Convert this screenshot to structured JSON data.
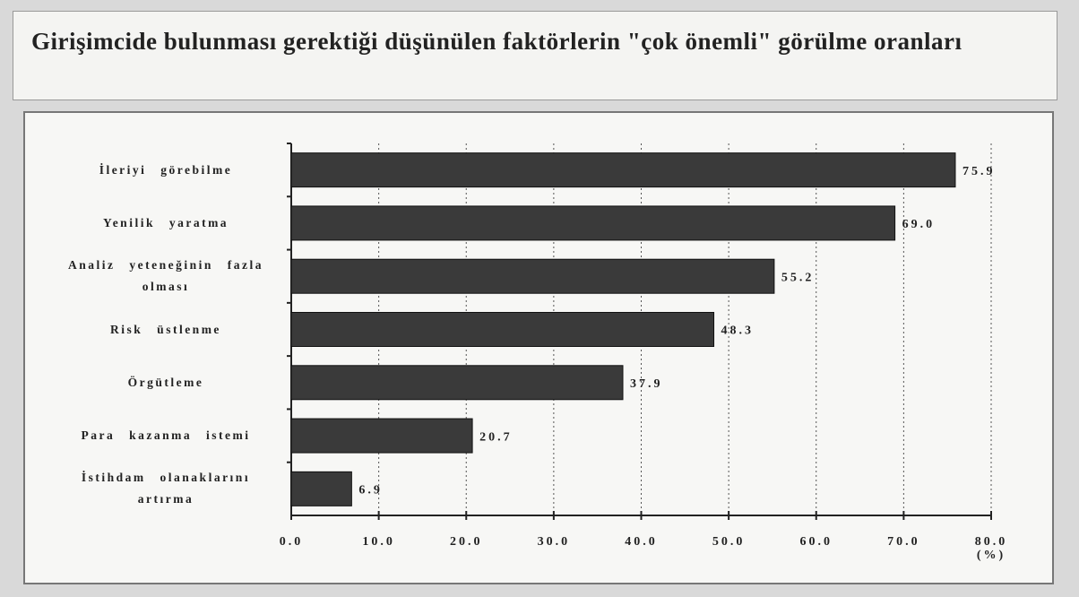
{
  "chart_data": {
    "type": "bar",
    "orientation": "horizontal",
    "title": "Girişimcide bulunması gerektiği düşünülen faktörlerin \"çok önemli\" görülme oranları",
    "x_label": "(%)",
    "categories": [
      "İleriyi görebilme",
      "Yenilik yaratma",
      "Analiz yeteneğinin fazla olması",
      "Risk üstlenme",
      "Örgütleme",
      "Para kazanma istemi",
      "İstihdam olanaklarını artırma"
    ],
    "values": [
      75.9,
      69.0,
      55.2,
      48.3,
      37.9,
      20.7,
      6.9
    ],
    "value_labels": [
      "75.9",
      "69.0",
      "55.2",
      "48.3",
      "37.9",
      "20.7",
      "6.9"
    ],
    "color": "#3a3a3a",
    "xlim": [
      0,
      80
    ],
    "xticks": [
      {
        "value": 0,
        "label": "0.0"
      },
      {
        "value": 10,
        "label": "10.0"
      },
      {
        "value": 20,
        "label": "20.0"
      },
      {
        "value": 30,
        "label": "30.0"
      },
      {
        "value": 40,
        "label": "40.0"
      },
      {
        "value": 50,
        "label": "50.0"
      },
      {
        "value": 60,
        "label": "60.0"
      },
      {
        "value": 70,
        "label": "70.0"
      },
      {
        "value": 80,
        "label": "80.0"
      }
    ],
    "grid": true
  }
}
